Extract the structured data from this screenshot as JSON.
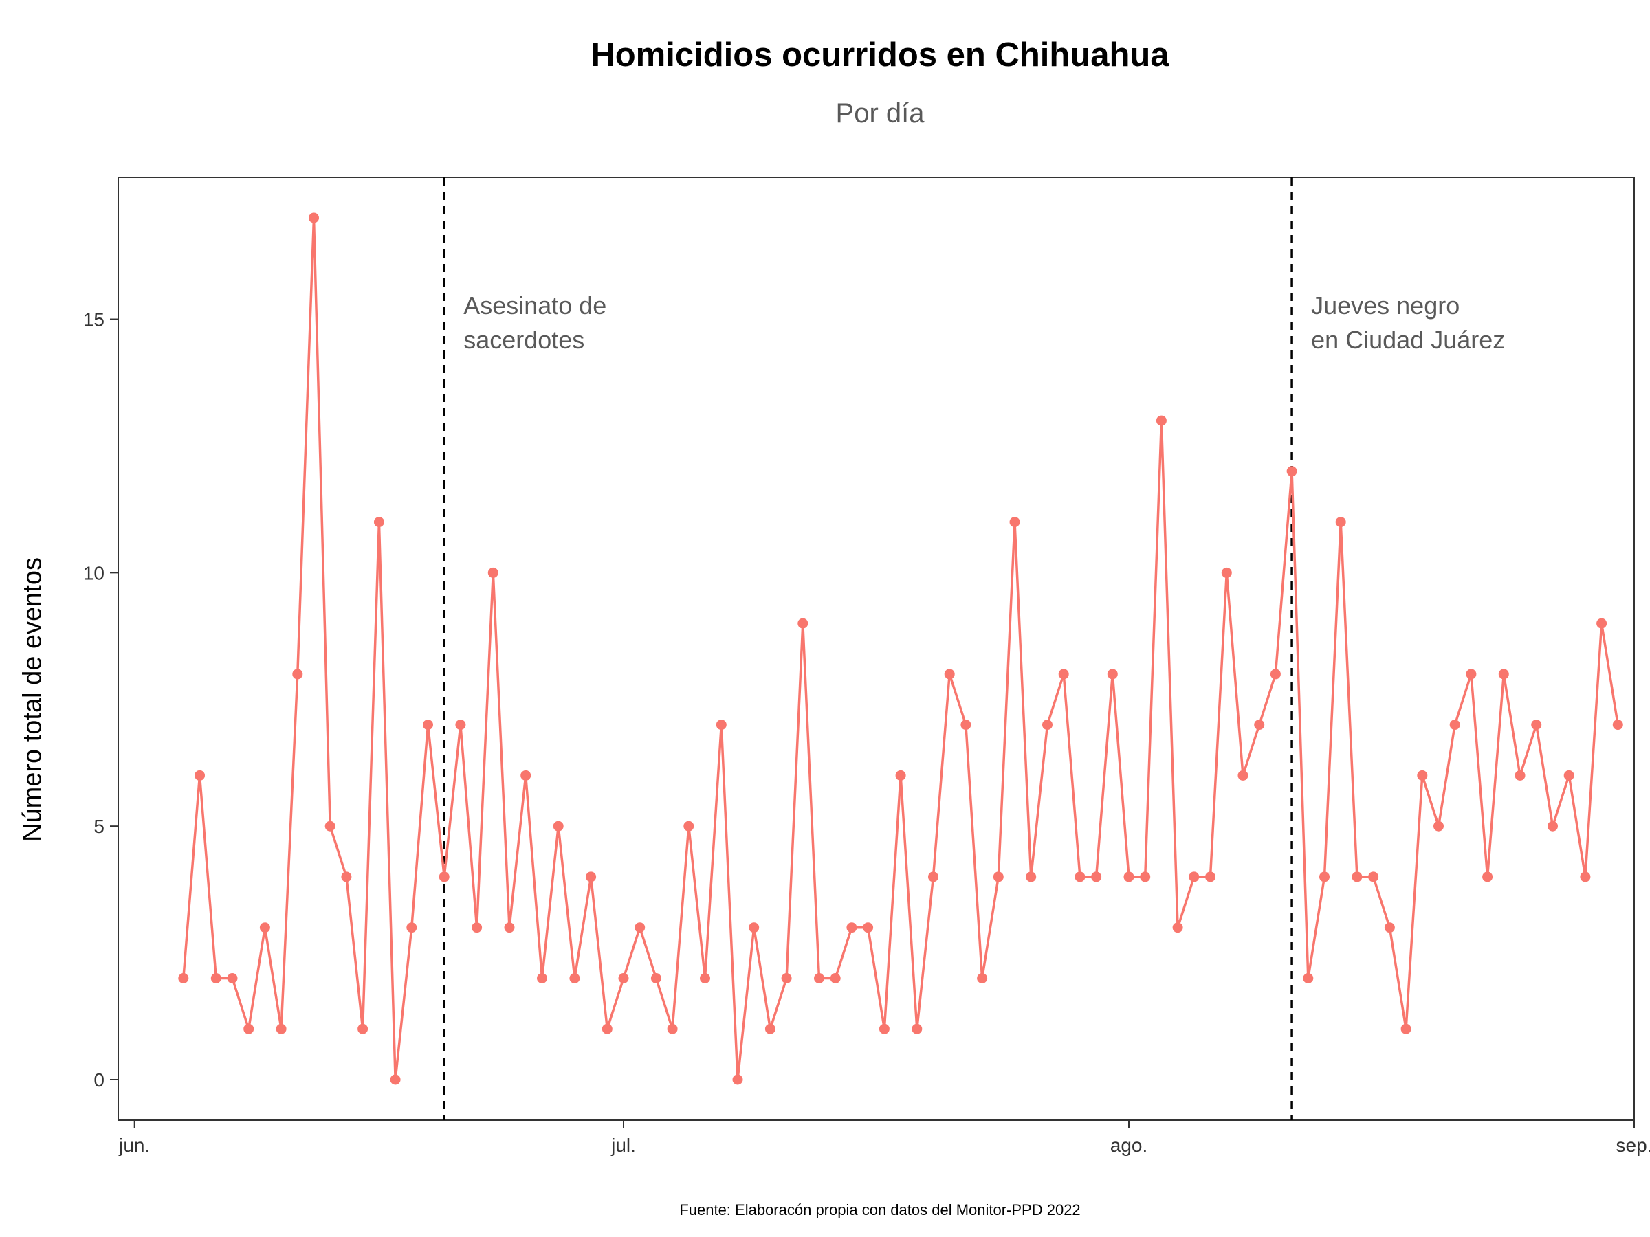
{
  "chart_data": {
    "type": "line",
    "title": "Homicidios ocurridos en Chihuahua",
    "subtitle": "Por día",
    "ylabel": "Número total de eventos",
    "xlabel": "",
    "caption": "Fuente: Elaboracón propia con datos del Monitor-PPD 2022",
    "x_ticks": [
      {
        "label": "jun.",
        "date": "2022-06-01"
      },
      {
        "label": "jul.",
        "date": "2022-07-01"
      },
      {
        "label": "ago.",
        "date": "2022-08-01"
      },
      {
        "label": "sep.",
        "date": "2022-09-01"
      }
    ],
    "y_ticks": [
      0,
      5,
      10,
      15
    ],
    "xlim": [
      "2022-05-31",
      "2022-09-01"
    ],
    "ylim": [
      -0.8,
      17.8
    ],
    "grid": false,
    "color": "#F8766D",
    "start_date": "2022-06-04",
    "values": [
      2,
      6,
      2,
      2,
      1,
      3,
      1,
      8,
      17,
      5,
      4,
      1,
      11,
      0,
      3,
      7,
      4,
      7,
      3,
      10,
      3,
      6,
      2,
      5,
      2,
      4,
      1,
      2,
      3,
      2,
      1,
      5,
      2,
      7,
      0,
      3,
      1,
      2,
      9,
      2,
      2,
      3,
      3,
      1,
      6,
      1,
      4,
      8,
      7,
      2,
      4,
      11,
      4,
      7,
      8,
      4,
      4,
      8,
      4,
      4,
      13,
      3,
      4,
      4,
      10,
      6,
      7,
      8,
      12,
      2,
      4,
      11,
      4,
      4,
      3,
      1,
      6,
      5,
      7,
      8,
      4,
      8,
      6,
      7,
      5,
      6,
      4,
      9,
      7
    ],
    "vlines": [
      {
        "date": "2022-06-20",
        "label_lines": [
          "Asesinato de",
          "sacerdotes"
        ]
      },
      {
        "date": "2022-08-11",
        "label_lines": [
          "Jueves negro",
          "en Ciudad Juárez"
        ]
      }
    ]
  }
}
